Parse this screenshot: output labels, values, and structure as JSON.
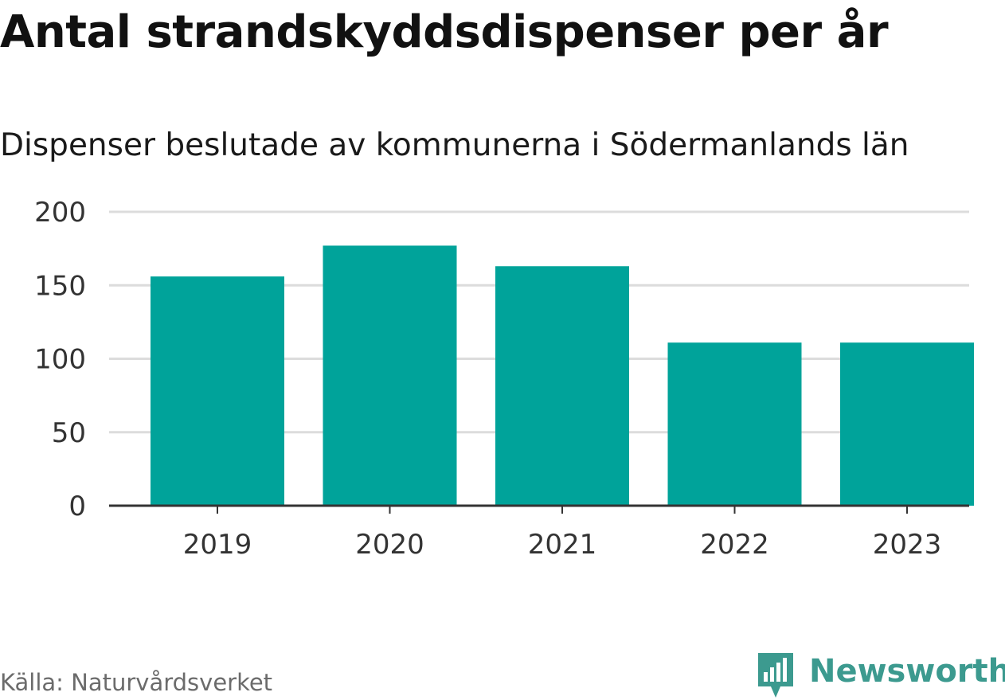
{
  "title": "Antal strandskyddsdispenser per år",
  "subtitle": "Dispenser beslutade av kommunerna i Södermanlands län",
  "source": "Källa: Naturvårdsverket",
  "brand": {
    "name": "Newsworthy",
    "color": "#3c9a8f",
    "icon": "newsworthy-logo-icon"
  },
  "colors": {
    "bar": "#00a39a",
    "grid": "#dcdcdc",
    "axis": "#333333"
  },
  "chart_data": {
    "type": "bar",
    "categories": [
      "2019",
      "2020",
      "2021",
      "2022",
      "2023"
    ],
    "values": [
      156,
      177,
      163,
      111,
      111
    ],
    "yticks": [
      "0",
      "50",
      "100",
      "150",
      "200"
    ],
    "ylim": [
      0,
      200
    ],
    "grid": true,
    "xlabel": "",
    "ylabel": ""
  }
}
